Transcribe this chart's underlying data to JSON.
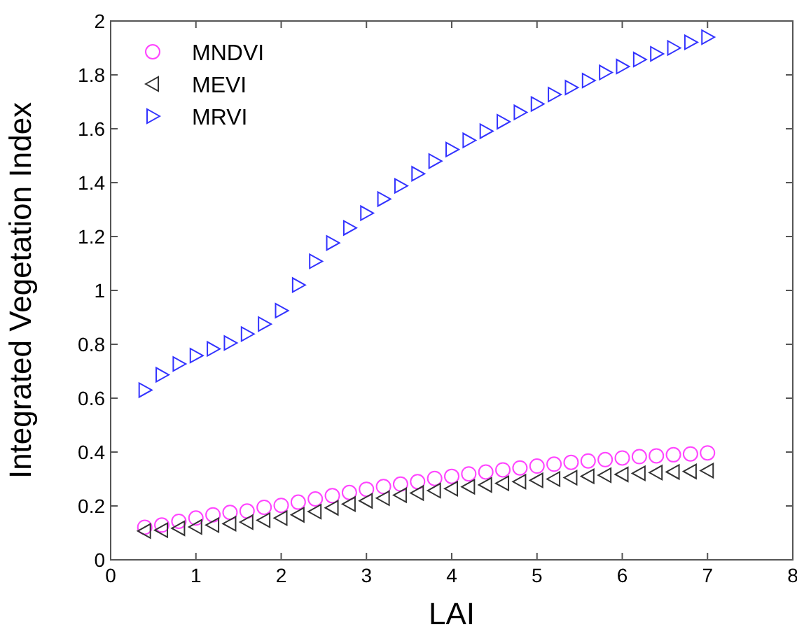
{
  "chart_data": {
    "type": "scatter",
    "xlabel": "LAI",
    "ylabel": "Integrated Vegetation Index",
    "x": [
      0.4,
      0.6,
      0.8,
      1.0,
      1.2,
      1.4,
      1.6,
      1.8,
      2.0,
      2.2,
      2.4,
      2.6,
      2.8,
      3.0,
      3.2,
      3.4,
      3.6,
      3.8,
      4.0,
      4.2,
      4.4,
      4.6,
      4.8,
      5.0,
      5.2,
      5.4,
      5.6,
      5.8,
      6.0,
      6.2,
      6.4,
      6.6,
      6.8,
      7.0
    ],
    "series": [
      {
        "name": "MNDVI",
        "color": "#ff44ff",
        "marker": "circle",
        "values": [
          0.121,
          0.129,
          0.143,
          0.155,
          0.167,
          0.176,
          0.181,
          0.195,
          0.202,
          0.214,
          0.226,
          0.238,
          0.25,
          0.262,
          0.272,
          0.281,
          0.29,
          0.302,
          0.31,
          0.319,
          0.326,
          0.334,
          0.341,
          0.348,
          0.355,
          0.362,
          0.367,
          0.372,
          0.378,
          0.383,
          0.386,
          0.39,
          0.393,
          0.397
        ]
      },
      {
        "name": "MEVI",
        "color": "#333333",
        "marker": "triangle-left",
        "values": [
          0.107,
          0.11,
          0.117,
          0.122,
          0.129,
          0.134,
          0.14,
          0.147,
          0.155,
          0.167,
          0.179,
          0.193,
          0.207,
          0.219,
          0.229,
          0.24,
          0.248,
          0.257,
          0.264,
          0.271,
          0.278,
          0.284,
          0.29,
          0.295,
          0.3,
          0.305,
          0.31,
          0.314,
          0.317,
          0.321,
          0.324,
          0.326,
          0.328,
          0.331
        ]
      },
      {
        "name": "MRVI",
        "color": "#3333ff",
        "marker": "triangle-right",
        "values": [
          0.63,
          0.687,
          0.727,
          0.758,
          0.783,
          0.805,
          0.838,
          0.875,
          0.925,
          1.02,
          1.108,
          1.176,
          1.232,
          1.287,
          1.339,
          1.388,
          1.433,
          1.48,
          1.523,
          1.557,
          1.591,
          1.626,
          1.661,
          1.692,
          1.727,
          1.753,
          1.779,
          1.809,
          1.831,
          1.857,
          1.878,
          1.9,
          1.921,
          1.94
        ]
      }
    ],
    "xlim": [
      0,
      8
    ],
    "xticks": [
      0,
      1,
      2,
      3,
      4,
      5,
      6,
      7,
      8
    ],
    "ylim": [
      0,
      2
    ],
    "yticks": [
      0,
      0.2,
      0.4,
      0.6,
      0.8,
      1,
      1.2,
      1.4,
      1.6,
      1.8,
      2
    ],
    "grid": false,
    "legend": "top left"
  }
}
